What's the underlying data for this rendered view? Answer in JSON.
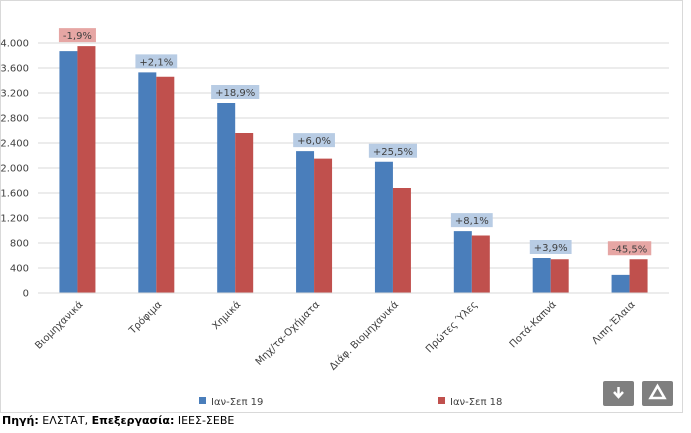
{
  "chart_data": {
    "type": "bar",
    "categories": [
      "Βιομηχανικά",
      "Τρόφιμα",
      "Χημικά",
      "Μηχ/τα-Οχήματα",
      "Διάφ. Βιομηχανικά",
      "Πρώτες Ύλες",
      "Ποτά-Καπνά",
      "Λιπη-Έλαια"
    ],
    "series": [
      {
        "name": "Ιαν-Σεπ 19",
        "color": "#4a7ebb",
        "values": [
          3870,
          3530,
          3040,
          2270,
          2100,
          990,
          560,
          290
        ]
      },
      {
        "name": "Ιαν-Σεπ 18",
        "color": "#c0504d",
        "values": [
          3950,
          3460,
          2560,
          2150,
          1680,
          920,
          540,
          540
        ]
      }
    ],
    "annotations": [
      "-1,9%",
      "+2,1%",
      "+18,9%",
      "+6,0%",
      "+25,5%",
      "+8,1%",
      "+3,9%",
      "-45,5%"
    ],
    "annotation_colors": [
      "#e6a6a4",
      "#b8cce4",
      "#b8cce4",
      "#b8cce4",
      "#b8cce4",
      "#b8cce4",
      "#b8cce4",
      "#e6a6a4"
    ],
    "ylim": [
      0,
      4000
    ],
    "yticks": [
      0,
      400,
      800,
      {
        "value": 1200,
        "label": "1.200"
      },
      {
        "value": 1600,
        "label": "1.600"
      },
      {
        "value": 2000,
        "label": "2.000"
      },
      {
        "value": 2400,
        "label": "2.400"
      },
      {
        "value": 2800,
        "label": "2.800"
      },
      {
        "value": 3200,
        "label": "3.200"
      },
      {
        "value": 3600,
        "label": "3.600"
      },
      {
        "value": 4000,
        "label": "4.000"
      }
    ],
    "grid": true
  },
  "footer": {
    "source_label": "Πηγή:",
    "source": "ΕΛΣΤΑΤ,",
    "processing_label": "Επεξεργασία:",
    "processing": "ΙΕΕΣ-ΣΕΒΕ"
  }
}
